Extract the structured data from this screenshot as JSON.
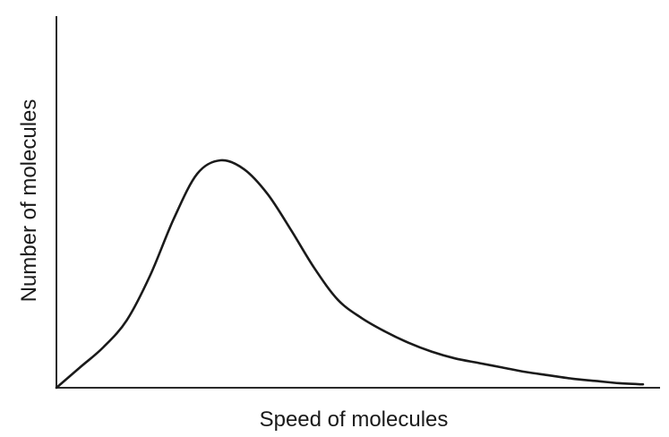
{
  "chart_data": {
    "type": "line",
    "title": "",
    "xlabel": "Speed of molecules",
    "ylabel": "Number of molecules",
    "x_ticks": [],
    "y_ticks": [],
    "grid": false,
    "xlim": [
      0,
      100
    ],
    "ylim": [
      0,
      100
    ],
    "series": [
      {
        "x": [
          0,
          4,
          8,
          12,
          16,
          20,
          24,
          28,
          32,
          36,
          40,
          44,
          48,
          52,
          56,
          60,
          64,
          68,
          72,
          76,
          80,
          84,
          88,
          92,
          96,
          100
        ],
        "y": [
          0,
          9,
          18,
          30,
          50,
          75,
          95,
          101,
          97,
          86,
          70,
          53,
          39,
          31,
          25,
          20,
          16,
          13,
          11,
          9,
          7,
          5.5,
          4,
          3,
          2,
          1.5
        ]
      }
    ]
  }
}
